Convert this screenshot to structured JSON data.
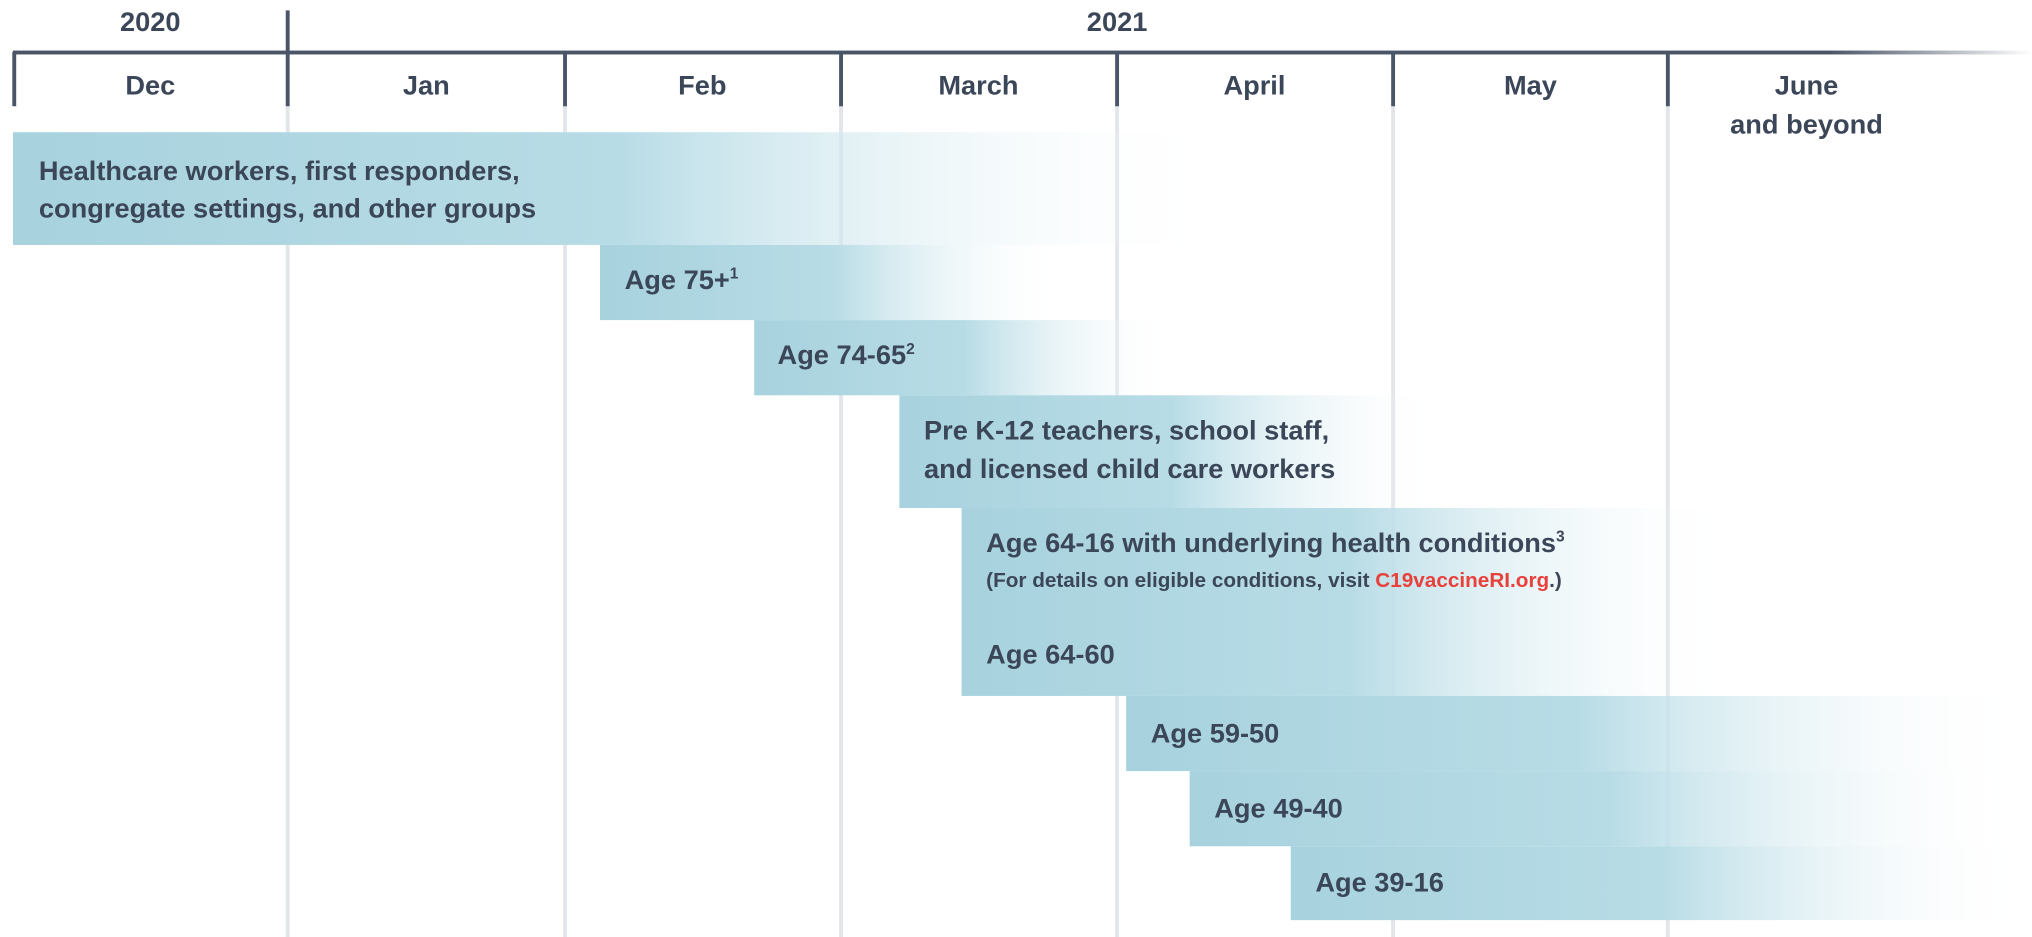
{
  "years": [
    "2020",
    "2021"
  ],
  "months": [
    "Dec",
    "Jan",
    "Feb",
    "March",
    "April",
    "May",
    "June"
  ],
  "last_month_suffix": "and beyond",
  "groups": [
    {
      "lines": [
        "Healthcare workers, first responders,",
        "congregate settings, and other groups"
      ]
    },
    {
      "label": "Age 75+",
      "sup": "1"
    },
    {
      "label": "Age 74-65",
      "sup": "2"
    },
    {
      "lines": [
        "Pre K-12 teachers, school staff,",
        "and licensed child care workers"
      ]
    },
    {
      "label": "Age 64-16 with underlying health conditions",
      "sup": "3",
      "note": "(For details on eligible conditions, visit ",
      "link": "C19vaccineRI.org",
      "note_end": ".)",
      "sub_label": "Age 64-60"
    },
    {
      "label": "Age 59-50"
    },
    {
      "label": "Age 49-40"
    },
    {
      "label": "Age 39-16"
    }
  ]
}
